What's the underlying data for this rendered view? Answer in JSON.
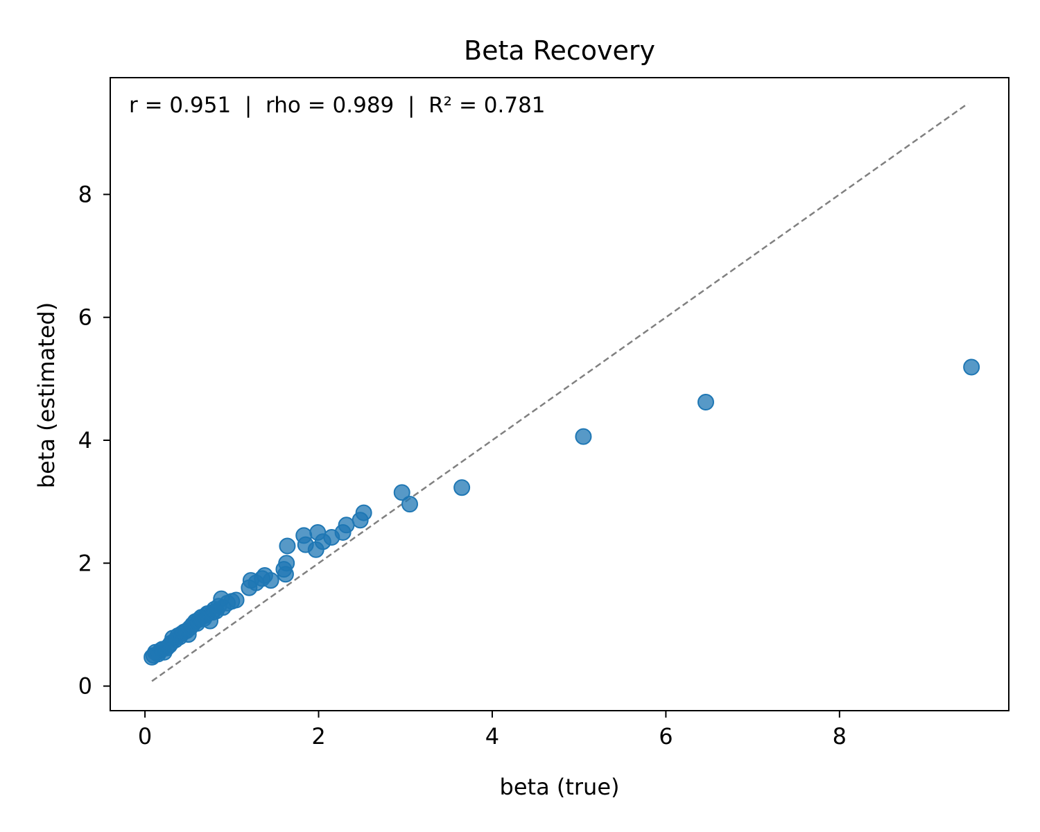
{
  "chart_data": {
    "type": "scatter",
    "title": "Beta Recovery",
    "xlabel": "beta (true)",
    "ylabel": "beta (estimated)",
    "annotation": "r = 0.951  |  rho = 0.989  |  R² = 0.781",
    "xlim": [
      -0.4,
      9.95
    ],
    "ylim": [
      -0.4,
      9.9
    ],
    "xticks": [
      0,
      2,
      4,
      6,
      8
    ],
    "yticks": [
      0,
      2,
      4,
      6,
      8
    ],
    "xtick_labels": [
      "0",
      "2",
      "4",
      "6",
      "8"
    ],
    "ytick_labels": [
      "0",
      "2",
      "4",
      "6",
      "8"
    ],
    "grid": false,
    "marker_color": "#1f77b4",
    "identity_line": {
      "from": [
        0.08,
        0.08
      ],
      "to": [
        9.48,
        9.48
      ],
      "color": "#808080",
      "style": "dashed"
    },
    "series": [
      {
        "name": "estimates",
        "points": [
          [
            0.08,
            0.47
          ],
          [
            0.1,
            0.5
          ],
          [
            0.12,
            0.55
          ],
          [
            0.15,
            0.52
          ],
          [
            0.18,
            0.58
          ],
          [
            0.2,
            0.6
          ],
          [
            0.22,
            0.55
          ],
          [
            0.25,
            0.62
          ],
          [
            0.28,
            0.66
          ],
          [
            0.3,
            0.7
          ],
          [
            0.32,
            0.78
          ],
          [
            0.35,
            0.75
          ],
          [
            0.38,
            0.82
          ],
          [
            0.4,
            0.8
          ],
          [
            0.42,
            0.85
          ],
          [
            0.45,
            0.88
          ],
          [
            0.48,
            0.9
          ],
          [
            0.5,
            0.84
          ],
          [
            0.52,
            0.95
          ],
          [
            0.55,
            1.0
          ],
          [
            0.58,
            1.05
          ],
          [
            0.6,
            1.02
          ],
          [
            0.62,
            1.08
          ],
          [
            0.65,
            1.12
          ],
          [
            0.68,
            1.1
          ],
          [
            0.7,
            1.15
          ],
          [
            0.72,
            1.18
          ],
          [
            0.75,
            1.06
          ],
          [
            0.78,
            1.2
          ],
          [
            0.8,
            1.25
          ],
          [
            0.82,
            1.22
          ],
          [
            0.85,
            1.3
          ],
          [
            0.88,
            1.42
          ],
          [
            0.9,
            1.28
          ],
          [
            0.95,
            1.35
          ],
          [
            1.0,
            1.38
          ],
          [
            1.05,
            1.4
          ],
          [
            1.2,
            1.6
          ],
          [
            1.22,
            1.72
          ],
          [
            1.28,
            1.68
          ],
          [
            1.35,
            1.75
          ],
          [
            1.38,
            1.8
          ],
          [
            1.45,
            1.72
          ],
          [
            1.6,
            1.9
          ],
          [
            1.62,
            1.82
          ],
          [
            1.63,
            2.0
          ],
          [
            1.64,
            2.28
          ],
          [
            1.83,
            2.45
          ],
          [
            1.85,
            2.3
          ],
          [
            1.97,
            2.22
          ],
          [
            1.99,
            2.5
          ],
          [
            2.05,
            2.35
          ],
          [
            2.15,
            2.42
          ],
          [
            2.28,
            2.5
          ],
          [
            2.32,
            2.62
          ],
          [
            2.48,
            2.7
          ],
          [
            2.52,
            2.82
          ],
          [
            2.96,
            3.15
          ],
          [
            3.05,
            2.96
          ],
          [
            3.65,
            3.23
          ],
          [
            5.05,
            4.06
          ],
          [
            6.46,
            4.62
          ],
          [
            9.52,
            5.19
          ]
        ]
      }
    ]
  }
}
